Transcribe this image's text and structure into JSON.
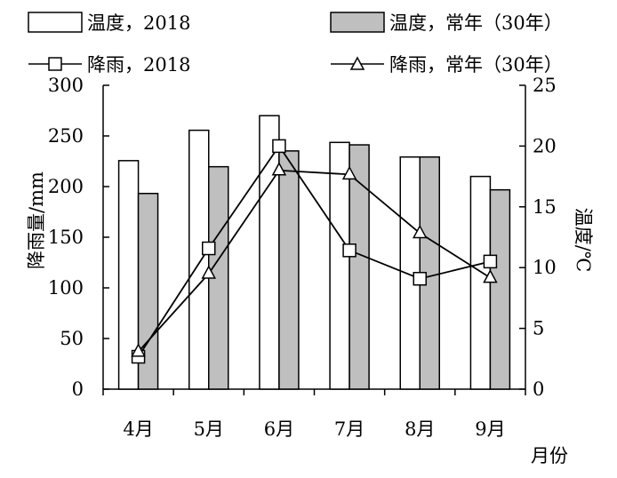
{
  "chart_data": {
    "type": "bar",
    "categories": [
      "4月",
      "5月",
      "6月",
      "7月",
      "8月",
      "9月"
    ],
    "xlabel": "月份",
    "ylabel_left": "降雨量/mm",
    "ylabel_right": "温度/℃",
    "ylim_left": [
      0,
      300
    ],
    "ylim_right": [
      0,
      25
    ],
    "yticks_left": [
      "0",
      "50",
      "100",
      "150",
      "200",
      "250",
      "300"
    ],
    "yticks_right": [
      "0",
      "5",
      "10",
      "15",
      "20",
      "25"
    ],
    "grid": false,
    "legend_position": "top",
    "bar_series": [
      {
        "name": "温度，2018",
        "axis": "right",
        "fill": "#ffffff",
        "values": [
          18.8,
          21.3,
          22.5,
          20.3,
          19.1,
          17.5
        ]
      },
      {
        "name": "温度，常年（30年）",
        "axis": "right",
        "fill": "#bfbfbf",
        "values": [
          16.1,
          18.3,
          19.6,
          20.1,
          19.1,
          16.4
        ]
      }
    ],
    "line_series": [
      {
        "name": "降雨，2018",
        "axis": "left",
        "marker": "square",
        "values": [
          32,
          139,
          240,
          137,
          109,
          126
        ]
      },
      {
        "name": "降雨，常年（30年）",
        "axis": "left",
        "marker": "triangle",
        "values": [
          37,
          114,
          216,
          212,
          154,
          110
        ]
      }
    ]
  }
}
